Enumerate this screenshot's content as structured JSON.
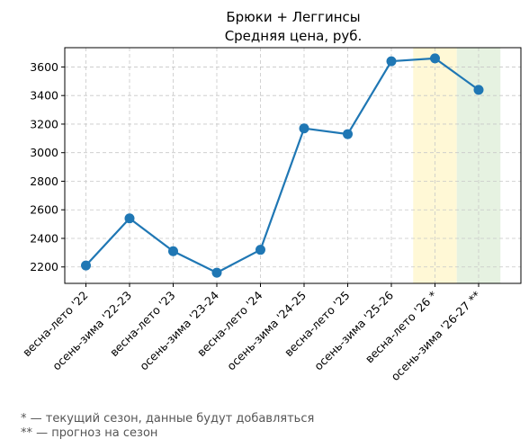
{
  "chart_data": {
    "type": "line",
    "title": "Брюки + Леггинсы",
    "subtitle": "Средняя цена, руб.",
    "categories": [
      "весна-лето '22",
      "осень-зима '22-23",
      "весна-лето '23",
      "осень-зима '23-24",
      "весна-лето '24",
      "осень-зима '24-25",
      "весна-лето '25",
      "осень-зима '25-26",
      "весна-лето '26 *",
      "осень-зима '26-27 **"
    ],
    "series": [
      {
        "values": [
          2210,
          2540,
          2310,
          2160,
          2320,
          3170,
          3130,
          3640,
          3660,
          3440
        ],
        "color": "#1f77b4"
      }
    ],
    "yticks": [
      2200,
      2400,
      2600,
      2800,
      3000,
      3200,
      3400,
      3600
    ],
    "ylim": [
      2085,
      3735
    ],
    "grid": true,
    "highlights": [
      {
        "category": "весна-лето '26 *",
        "color": "#fff8d6"
      },
      {
        "category": "осень-зима '26-27 **",
        "color": "#e6f2e1"
      }
    ],
    "footnotes": [
      "* — текущий сезон, данные будут добавляться",
      "** — прогноз на сезон"
    ]
  }
}
